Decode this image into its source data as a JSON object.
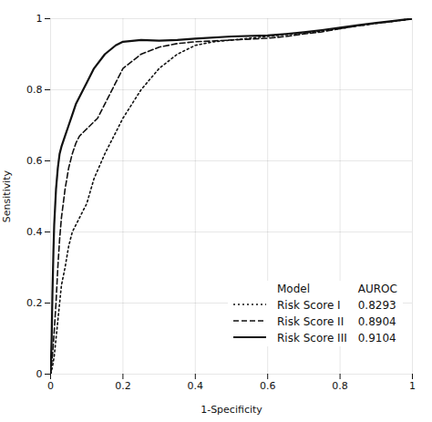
{
  "chart_data": {
    "type": "line",
    "xlabel": "1-Specificity",
    "ylabel": "Sensitivity",
    "xlim": [
      0.0,
      1.0
    ],
    "ylim": [
      0.0,
      1.0
    ],
    "xticks": [
      0.0,
      0.2,
      0.4,
      0.6,
      0.8,
      1.0
    ],
    "yticks": [
      0.0,
      0.2,
      0.4,
      0.6,
      0.8,
      1.0
    ],
    "grid": true,
    "legend": "lower right",
    "legend_columns": [
      "Model",
      "AUROC"
    ],
    "series": [
      {
        "name": "Risk Score I",
        "auroc": 0.8293,
        "color": "#111111",
        "line_style": "dotted",
        "x": [
          0.0,
          0.005,
          0.01,
          0.015,
          0.02,
          0.025,
          0.03,
          0.04,
          0.05,
          0.06,
          0.07,
          0.08,
          0.09,
          0.1,
          0.12,
          0.15,
          0.18,
          0.2,
          0.25,
          0.3,
          0.35,
          0.4,
          0.45,
          0.5,
          0.55,
          0.6,
          0.65,
          0.7,
          0.75,
          0.8,
          0.85,
          0.9,
          0.95,
          1.0
        ],
        "values": [
          0.0,
          0.02,
          0.05,
          0.1,
          0.15,
          0.2,
          0.25,
          0.3,
          0.36,
          0.4,
          0.42,
          0.44,
          0.46,
          0.48,
          0.55,
          0.62,
          0.68,
          0.72,
          0.8,
          0.86,
          0.9,
          0.925,
          0.935,
          0.94,
          0.945,
          0.95,
          0.955,
          0.96,
          0.965,
          0.972,
          0.98,
          0.987,
          0.993,
          1.0
        ]
      },
      {
        "name": "Risk Score II",
        "auroc": 0.8904,
        "color": "#111111",
        "line_style": "dashed",
        "x": [
          0.0,
          0.005,
          0.01,
          0.015,
          0.02,
          0.025,
          0.03,
          0.04,
          0.05,
          0.06,
          0.07,
          0.08,
          0.09,
          0.1,
          0.12,
          0.13,
          0.15,
          0.18,
          0.2,
          0.25,
          0.3,
          0.35,
          0.4,
          0.5,
          0.6,
          0.65,
          0.7,
          0.75,
          0.8,
          0.85,
          0.9,
          0.95,
          1.0
        ],
        "values": [
          0.0,
          0.05,
          0.12,
          0.2,
          0.3,
          0.38,
          0.44,
          0.52,
          0.58,
          0.62,
          0.65,
          0.67,
          0.68,
          0.69,
          0.71,
          0.72,
          0.76,
          0.82,
          0.86,
          0.9,
          0.92,
          0.93,
          0.935,
          0.94,
          0.945,
          0.95,
          0.957,
          0.963,
          0.972,
          0.98,
          0.987,
          0.993,
          1.0
        ]
      },
      {
        "name": "Risk Score III",
        "auroc": 0.9104,
        "color": "#111111",
        "line_style": "solid",
        "x": [
          0.0,
          0.003,
          0.005,
          0.008,
          0.01,
          0.015,
          0.02,
          0.025,
          0.03,
          0.04,
          0.05,
          0.06,
          0.07,
          0.08,
          0.09,
          0.1,
          0.12,
          0.15,
          0.18,
          0.2,
          0.25,
          0.3,
          0.35,
          0.4,
          0.5,
          0.6,
          0.65,
          0.7,
          0.75,
          0.8,
          0.85,
          0.9,
          0.95,
          1.0
        ],
        "values": [
          0.0,
          0.1,
          0.22,
          0.35,
          0.42,
          0.52,
          0.58,
          0.62,
          0.64,
          0.67,
          0.7,
          0.73,
          0.76,
          0.78,
          0.8,
          0.82,
          0.86,
          0.9,
          0.925,
          0.935,
          0.94,
          0.938,
          0.94,
          0.944,
          0.95,
          0.953,
          0.957,
          0.962,
          0.968,
          0.975,
          0.982,
          0.988,
          0.994,
          1.0
        ]
      }
    ]
  }
}
